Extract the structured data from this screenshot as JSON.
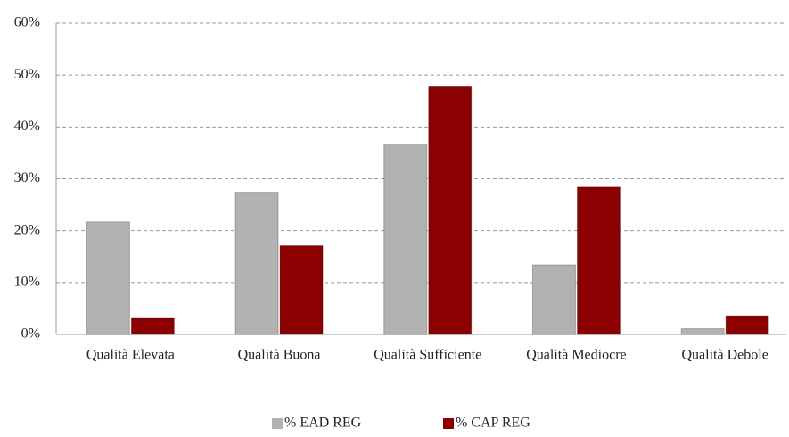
{
  "chart_data": {
    "type": "bar",
    "categories": [
      "Qualità Elevata",
      "Qualità Buona",
      "Qualità Sufficiente",
      "Qualità Mediocre",
      "Qualità Debole"
    ],
    "series": [
      {
        "name": "% EAD REG",
        "color": "#b2b2b2",
        "values": [
          21.7,
          27.4,
          36.7,
          13.4,
          1.1
        ]
      },
      {
        "name": "% CAP REG",
        "color": "#8b0000",
        "values": [
          3.1,
          17.1,
          47.9,
          28.4,
          3.6
        ]
      }
    ],
    "ylim": [
      0,
      60
    ],
    "yticks": [
      {
        "value": 0,
        "label": "0%"
      },
      {
        "value": 10,
        "label": "10%"
      },
      {
        "value": 20,
        "label": "20%"
      },
      {
        "value": 30,
        "label": "30%"
      },
      {
        "value": 40,
        "label": "40%"
      },
      {
        "value": 50,
        "label": "50%"
      },
      {
        "value": 60,
        "label": "60%"
      }
    ],
    "grid": true,
    "legend": "bottom"
  }
}
